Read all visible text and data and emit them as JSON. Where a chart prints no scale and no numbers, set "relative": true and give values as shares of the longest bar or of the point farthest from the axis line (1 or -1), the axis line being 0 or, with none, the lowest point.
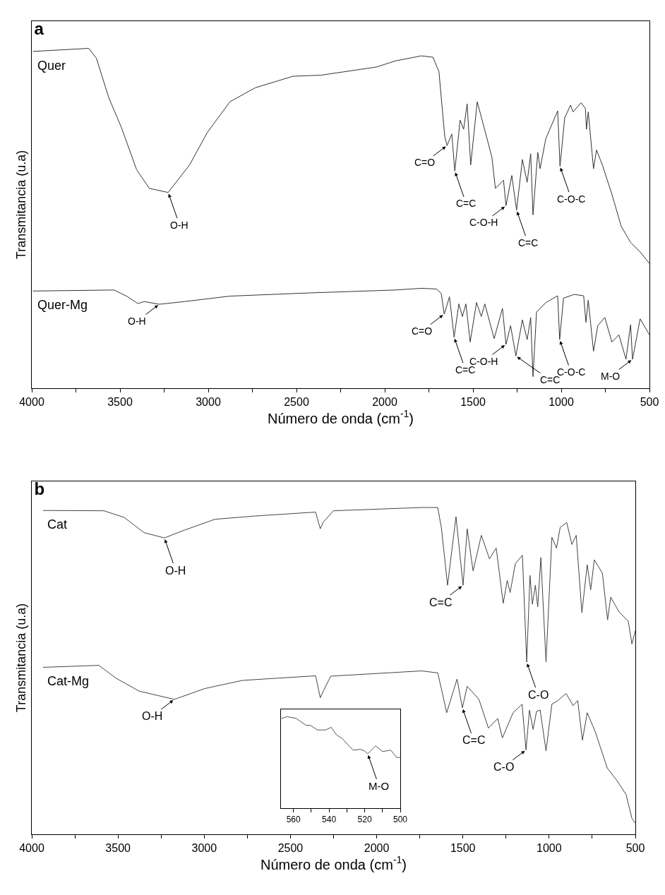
{
  "chart_data": [
    {
      "type": "line",
      "title": "a",
      "xlabel": "Número de onda (cm$^{-1}$)",
      "ylabel": "Transmitancia (u.a)",
      "relative": true,
      "xlim": [
        4000,
        500
      ],
      "xticks": [
        4000,
        {
          "value": 3750,
          "label": null
        },
        3500,
        {
          "value": 3250,
          "label": null
        },
        3000,
        {
          "value": 2750,
          "label": null
        },
        2500,
        {
          "value": 2250,
          "label": null
        },
        2000,
        {
          "value": 1750,
          "label": null
        },
        1500,
        {
          "value": 1250,
          "label": null
        },
        1000,
        {
          "value": 750,
          "label": null
        },
        500
      ],
      "series": [
        {
          "name": "Quer",
          "color": "#333333",
          "x": [
            3992,
            3677,
            3634,
            3563,
            3492,
            3406,
            3334,
            3227,
            3106,
            3006,
            2877,
            2734,
            2520,
            2363,
            2048,
            1940,
            1793,
            1727,
            1693,
            1660,
            1647,
            1620,
            1603,
            1573,
            1553,
            1533,
            1513,
            1476,
            1433,
            1393,
            1373,
            1327,
            1313,
            1280,
            1253,
            1220,
            1193,
            1173,
            1160,
            1133,
            1120,
            1087,
            1020,
            1007,
            980,
            947,
            933,
            887,
            863,
            857,
            847,
            817,
            800,
            767,
            713,
            660,
            607,
            553,
            500
          ],
          "values": [
            0.991,
            1.0,
            0.971,
            0.854,
            0.767,
            0.643,
            0.588,
            0.576,
            0.657,
            0.752,
            0.843,
            0.884,
            0.918,
            0.921,
            0.945,
            0.963,
            0.978,
            0.974,
            0.932,
            0.741,
            0.714,
            0.748,
            0.639,
            0.789,
            0.762,
            0.837,
            0.657,
            0.843,
            0.759,
            0.68,
            0.588,
            0.612,
            0.537,
            0.626,
            0.524,
            0.673,
            0.606,
            0.69,
            0.51,
            0.694,
            0.646,
            0.735,
            0.816,
            0.653,
            0.796,
            0.833,
            0.813,
            0.84,
            0.823,
            0.762,
            0.813,
            0.646,
            0.701,
            0.657,
            0.571,
            0.476,
            0.429,
            0.401,
            0.367
          ]
        },
        {
          "name": "Quer-Mg",
          "color": "#333333",
          "x": [
            3992,
            3534,
            3463,
            3398,
            3363,
            3277,
            3134,
            2877,
            2448,
            1940,
            1792,
            1707,
            1680,
            1663,
            1633,
            1607,
            1580,
            1560,
            1540,
            1516,
            1480,
            1453,
            1433,
            1380,
            1333,
            1313,
            1287,
            1257,
            1220,
            1193,
            1173,
            1160,
            1140,
            1087,
            1020,
            1009,
            987,
            927,
            873,
            860,
            847,
            817,
            793,
            753,
            713,
            673,
            633,
            607,
            596,
            553,
            500
          ],
          "values": [
            0.286,
            0.289,
            0.271,
            0.249,
            0.255,
            0.247,
            0.255,
            0.271,
            0.28,
            0.289,
            0.294,
            0.292,
            0.279,
            0.218,
            0.269,
            0.15,
            0.248,
            0.211,
            0.248,
            0.136,
            0.252,
            0.211,
            0.248,
            0.146,
            0.235,
            0.129,
            0.184,
            0.095,
            0.201,
            0.143,
            0.208,
            0.034,
            0.224,
            0.252,
            0.272,
            0.143,
            0.265,
            0.276,
            0.272,
            0.194,
            0.259,
            0.109,
            0.184,
            0.208,
            0.136,
            0.157,
            0.085,
            0.187,
            0.085,
            0.204,
            0.157
          ]
        }
      ],
      "annotations": [
        {
          "text": "O-H",
          "x": 3227,
          "y": 0.576
        },
        {
          "text": "C=O",
          "x": 1647,
          "y": 0.714
        },
        {
          "text": "C=C",
          "x": 1603,
          "y": 0.639
        },
        {
          "text": "C-O-H",
          "x": 1313,
          "y": 0.537
        },
        {
          "text": "C=C",
          "x": 1253,
          "y": 0.524
        },
        {
          "text": "O-H",
          "x": 3277,
          "y": 0.247
        },
        {
          "text": "C-O-C",
          "x": 1007,
          "y": 0.653
        },
        {
          "text": "C=O",
          "x": 1663,
          "y": 0.218
        },
        {
          "text": "C=C",
          "x": 1607,
          "y": 0.15
        },
        {
          "text": "C-O-H",
          "x": 1313,
          "y": 0.129
        },
        {
          "text": "C=C",
          "x": 1257,
          "y": 0.095
        },
        {
          "text": "M-O",
          "x": 596,
          "y": 0.085
        },
        {
          "text": "C-O-C",
          "x": 1009,
          "y": 0.143
        }
      ]
    },
    {
      "type": "line",
      "title": "b",
      "xlabel": "Número de onda (cm$^{-1}$)",
      "ylabel": "Transmitancia (u.a)",
      "relative": true,
      "xlim": [
        4000,
        500
      ],
      "xticks": [
        4000,
        {
          "value": 3750,
          "label": null
        },
        3500,
        {
          "value": 3250,
          "label": null
        },
        3000,
        {
          "value": 2750,
          "label": null
        },
        2500,
        {
          "value": 2250,
          "label": null
        },
        2000,
        {
          "value": 1750,
          "label": null
        },
        1500,
        {
          "value": 1250,
          "label": null
        },
        1000,
        {
          "value": 750,
          "label": null
        },
        500
      ],
      "series": [
        {
          "name": "Cat",
          "color": "#444444",
          "x": [
            3933,
            3582,
            3465,
            3348,
            3231,
            3114,
            2938,
            2705,
            2354,
            2327,
            2310,
            2251,
            1740,
            1646,
            1625,
            1589,
            1540,
            1499,
            1475,
            1441,
            1393,
            1346,
            1307,
            1266,
            1243,
            1226,
            1196,
            1155,
            1130,
            1111,
            1097,
            1080,
            1066,
            1048,
            1018,
            984,
            957,
            936,
            898,
            868,
            843,
            810,
            779,
            759,
            738,
            691,
            661,
            643,
            595,
            541,
            520,
            500
          ],
          "values": [
            0.991,
            0.99,
            0.97,
            0.923,
            0.907,
            0.931,
            0.964,
            0.974,
            0.986,
            0.935,
            0.955,
            0.99,
            1.0,
            1.0,
            0.939,
            0.762,
            0.972,
            0.762,
            0.935,
            0.806,
            0.915,
            0.843,
            0.876,
            0.707,
            0.777,
            0.74,
            0.828,
            0.854,
            0.527,
            0.792,
            0.704,
            0.762,
            0.696,
            0.847,
            0.527,
            0.909,
            0.876,
            0.939,
            0.954,
            0.887,
            0.915,
            0.678,
            0.825,
            0.748,
            0.84,
            0.799,
            0.656,
            0.726,
            0.681,
            0.652,
            0.582,
            0.623
          ]
        },
        {
          "name": "Cat-Mg",
          "color": "#444444",
          "x": [
            3933,
            3611,
            3509,
            3377,
            3173,
            2997,
            2778,
            2354,
            2327,
            2295,
            2266,
            1740,
            1646,
            1625,
            1594,
            1534,
            1503,
            1475,
            1407,
            1352,
            1298,
            1271,
            1209,
            1157,
            1134,
            1114,
            1093,
            1073,
            1052,
            1018,
            984,
            950,
            902,
            861,
            834,
            807,
            779,
            732,
            663,
            609,
            554,
            520,
            500
          ],
          "values": [
            0.511,
            0.517,
            0.477,
            0.438,
            0.413,
            0.446,
            0.471,
            0.485,
            0.418,
            0.454,
            0.484,
            0.5,
            0.494,
            0.446,
            0.372,
            0.475,
            0.387,
            0.453,
            0.413,
            0.325,
            0.354,
            0.295,
            0.372,
            0.398,
            0.258,
            0.38,
            0.321,
            0.376,
            0.38,
            0.255,
            0.398,
            0.409,
            0.431,
            0.394,
            0.409,
            0.288,
            0.372,
            0.313,
            0.203,
            0.166,
            0.122,
            0.049,
            0.034
          ]
        }
      ],
      "annotations": [
        {
          "text": "O-H",
          "x": 3231,
          "y": 0.907
        },
        {
          "text": "C=C",
          "x": 1499,
          "y": 0.762
        },
        {
          "text": "C-O",
          "x": 1130,
          "y": 0.527
        },
        {
          "text": "O-H",
          "x": 3173,
          "y": 0.413
        },
        {
          "text": "C=C",
          "x": 1503,
          "y": 0.387
        },
        {
          "text": "C-O",
          "x": 1134,
          "y": 0.258
        }
      ]
    },
    {
      "type": "line",
      "relative": true,
      "xlim": [
        567,
        500
      ],
      "xticks": [
        560,
        {
          "value": 550,
          "label": null
        },
        540,
        {
          "value": 530,
          "label": null
        },
        520,
        {
          "value": 510,
          "label": null
        },
        500
      ],
      "series": [
        {
          "color": "#555555",
          "x": [
            566.6,
            563.7,
            558.4,
            553.1,
            550.4,
            546.5,
            541.8,
            538.8,
            535.8,
            532.5,
            526.5,
            522.5,
            520.2,
            518.3,
            513.9,
            509.9,
            505.3,
            502,
            500
          ],
          "values": [
            0.981,
            1.0,
            0.981,
            0.908,
            0.904,
            0.855,
            0.855,
            0.884,
            0.802,
            0.759,
            0.634,
            0.643,
            0.627,
            0.595,
            0.682,
            0.619,
            0.634,
            0.554,
            0.554
          ]
        }
      ],
      "annotations": [
        {
          "text": "M-O",
          "x": 518.3,
          "y": 0.595
        }
      ]
    }
  ]
}
